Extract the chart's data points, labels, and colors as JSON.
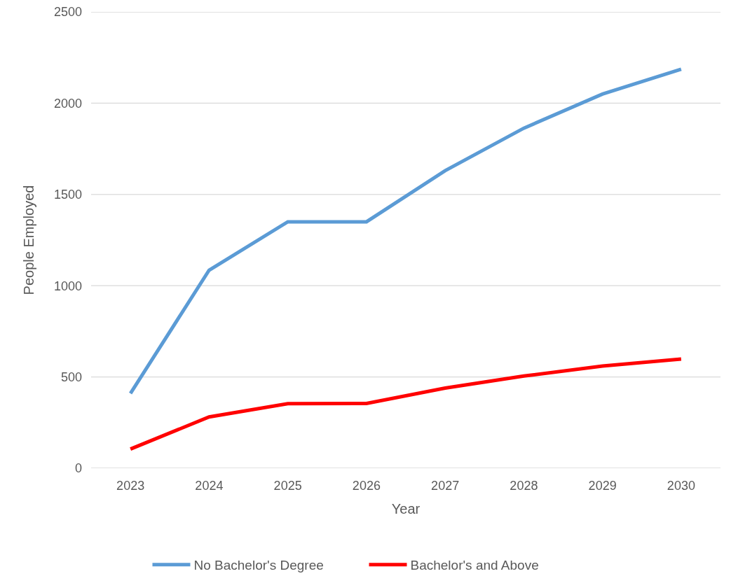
{
  "chart_data": {
    "type": "line",
    "xlabel": "Year",
    "ylabel": "People Employed",
    "categories": [
      "2023",
      "2024",
      "2025",
      "2026",
      "2027",
      "2028",
      "2029",
      "2030"
    ],
    "series": [
      {
        "name": "No Bachelor's Degree",
        "color": "#5b9bd5",
        "values": [
          410,
          1085,
          1350,
          1350,
          1630,
          1863,
          2050,
          2186
        ]
      },
      {
        "name": "Bachelor's and Above",
        "color": "#ff0000",
        "values": [
          105,
          281,
          354,
          355,
          439,
          505,
          560,
          598
        ]
      }
    ],
    "ylim": [
      0,
      2500
    ],
    "yticks": [
      0,
      500,
      1000,
      1500,
      2000,
      2500
    ],
    "grid": "y",
    "legend": "bottom",
    "marker": "none",
    "line_style": "solid"
  }
}
